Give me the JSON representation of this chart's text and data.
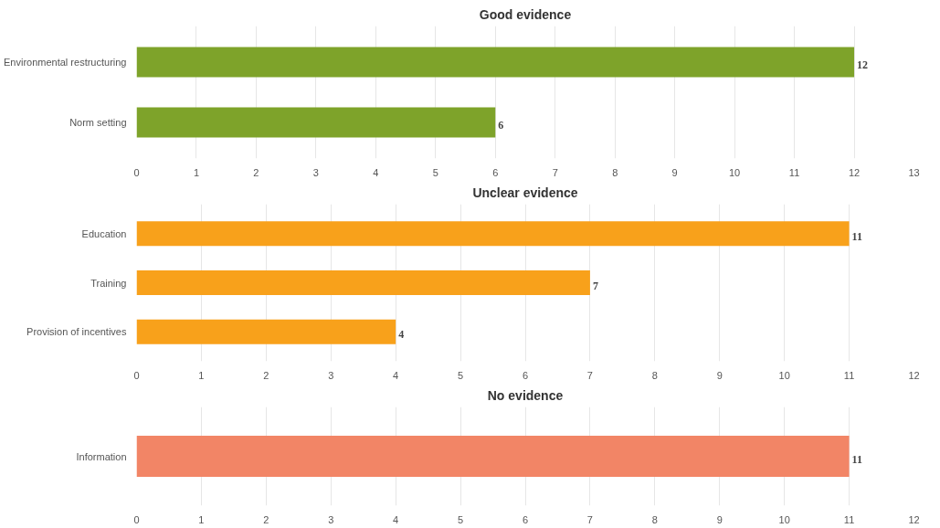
{
  "chart_data": [
    {
      "type": "bar",
      "orientation": "horizontal",
      "title": "Good evidence",
      "categories": [
        "Environmental restructuring",
        "Norm setting"
      ],
      "values": [
        12,
        6
      ],
      "color": "#7ea32a",
      "xlim": [
        0,
        13
      ],
      "xticks": [
        0,
        1,
        2,
        3,
        4,
        5,
        6,
        7,
        8,
        9,
        10,
        11,
        12,
        13
      ],
      "grid": "x",
      "data_labels": true
    },
    {
      "type": "bar",
      "orientation": "horizontal",
      "title": "Unclear evidence",
      "categories": [
        "Education",
        "Training",
        "Provision of incentives"
      ],
      "values": [
        11,
        7,
        4
      ],
      "color": "#f8a11b",
      "xlim": [
        0,
        12
      ],
      "xticks": [
        0,
        1,
        2,
        3,
        4,
        5,
        6,
        7,
        8,
        9,
        10,
        11,
        12
      ],
      "grid": "x",
      "data_labels": true
    },
    {
      "type": "bar",
      "orientation": "horizontal",
      "title": "No evidence",
      "categories": [
        "Information"
      ],
      "values": [
        11
      ],
      "color": "#f28566",
      "xlim": [
        0,
        12
      ],
      "xticks": [
        0,
        1,
        2,
        3,
        4,
        5,
        6,
        7,
        8,
        9,
        10,
        11,
        12
      ],
      "grid": "x",
      "data_labels": true
    }
  ]
}
